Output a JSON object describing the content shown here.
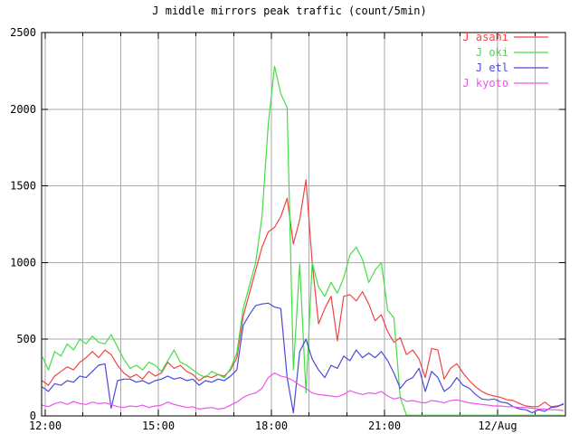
{
  "colors": {
    "background": "#ffffff",
    "grid": "#aaaaaa",
    "axis": "#000000",
    "text": "#000000"
  },
  "chart_data": {
    "type": "line",
    "title": "J middle mirrors peak traffic (count/5min)",
    "x_axis": {
      "tick_labels": [
        "12:00",
        "15:00",
        "18:00",
        "21:00",
        "12/Aug"
      ],
      "tick_minutes_from_1200": [
        0,
        180,
        360,
        540,
        720
      ],
      "minor_tick_every_minutes": 60,
      "range_minutes_from_1200": [
        -7,
        828
      ],
      "grid": true
    },
    "y_axis": {
      "tick_labels": [
        "0",
        "500",
        "1000",
        "1500",
        "2000",
        "2500"
      ],
      "tick_values": [
        0,
        500,
        1000,
        1500,
        2000,
        2500
      ],
      "range": [
        0,
        2500
      ],
      "grid": true
    },
    "x_minutes_from_1200": [
      -5,
      5,
      15,
      25,
      35,
      45,
      55,
      65,
      75,
      85,
      95,
      105,
      115,
      125,
      135,
      145,
      155,
      165,
      175,
      185,
      195,
      205,
      215,
      225,
      235,
      245,
      255,
      265,
      275,
      285,
      295,
      305,
      315,
      325,
      335,
      345,
      355,
      365,
      375,
      385,
      395,
      405,
      415,
      425,
      435,
      445,
      455,
      465,
      475,
      485,
      495,
      505,
      515,
      525,
      535,
      545,
      555,
      565,
      575,
      585,
      595,
      605,
      615,
      625,
      635,
      645,
      655,
      665,
      675,
      685,
      695,
      705,
      715,
      725,
      735,
      745,
      755,
      765,
      775,
      785,
      795,
      805,
      815,
      825
    ],
    "series": [
      {
        "name": "J asahi",
        "color": "#ee4444",
        "values": [
          230,
          200,
          260,
          290,
          320,
          300,
          350,
          380,
          420,
          380,
          430,
          400,
          330,
          280,
          250,
          270,
          240,
          290,
          260,
          280,
          350,
          310,
          330,
          290,
          270,
          230,
          260,
          250,
          270,
          260,
          300,
          380,
          650,
          800,
          950,
          1100,
          1200,
          1230,
          1300,
          1420,
          1120,
          1280,
          1540,
          1000,
          600,
          700,
          780,
          490,
          780,
          790,
          750,
          810,
          730,
          620,
          660,
          550,
          480,
          510,
          400,
          430,
          370,
          250,
          440,
          430,
          240,
          310,
          340,
          280,
          230,
          190,
          160,
          140,
          130,
          120,
          105,
          100,
          80,
          65,
          60,
          60,
          90,
          60,
          65,
          75
        ]
      },
      {
        "name": "J oki",
        "color": "#44dd44",
        "values": [
          390,
          300,
          420,
          390,
          470,
          430,
          500,
          470,
          520,
          480,
          470,
          530,
          450,
          370,
          310,
          330,
          300,
          350,
          330,
          290,
          360,
          430,
          350,
          330,
          300,
          270,
          250,
          290,
          270,
          250,
          310,
          410,
          700,
          850,
          1000,
          1300,
          1900,
          2280,
          2100,
          2010,
          300,
          990,
          150,
          1000,
          840,
          780,
          870,
          800,
          900,
          1050,
          1100,
          1020,
          870,
          950,
          1000,
          690,
          640,
          120,
          5,
          5,
          5,
          5,
          5,
          5,
          5,
          5,
          5,
          5,
          5,
          5,
          5,
          5,
          5,
          5,
          5,
          5,
          5,
          5,
          5,
          5,
          5,
          5,
          5,
          5
        ]
      },
      {
        "name": "J etl",
        "color": "#4a4ad8",
        "values": [
          190,
          160,
          210,
          200,
          230,
          220,
          260,
          250,
          290,
          330,
          340,
          50,
          230,
          240,
          240,
          220,
          230,
          210,
          230,
          240,
          260,
          240,
          250,
          230,
          240,
          200,
          230,
          220,
          240,
          230,
          260,
          300,
          590,
          660,
          720,
          730,
          735,
          710,
          700,
          250,
          20,
          420,
          500,
          370,
          300,
          250,
          330,
          310,
          390,
          360,
          430,
          380,
          410,
          380,
          420,
          360,
          280,
          180,
          230,
          250,
          310,
          160,
          290,
          250,
          160,
          190,
          250,
          200,
          180,
          140,
          110,
          105,
          110,
          90,
          85,
          60,
          45,
          40,
          20,
          40,
          30,
          55,
          60,
          80
        ]
      },
      {
        "name": "J kyoto",
        "color": "#ee55ee",
        "values": [
          70,
          60,
          80,
          90,
          75,
          95,
          80,
          75,
          90,
          80,
          85,
          75,
          60,
          55,
          65,
          60,
          70,
          55,
          65,
          70,
          90,
          75,
          65,
          55,
          60,
          45,
          50,
          55,
          45,
          50,
          70,
          90,
          120,
          140,
          150,
          180,
          250,
          280,
          260,
          250,
          230,
          200,
          180,
          150,
          140,
          135,
          130,
          125,
          140,
          165,
          150,
          140,
          150,
          145,
          160,
          130,
          110,
          120,
          95,
          100,
          90,
          85,
          100,
          95,
          85,
          100,
          105,
          95,
          85,
          80,
          75,
          70,
          65,
          65,
          60,
          60,
          55,
          55,
          50,
          45,
          45,
          40,
          40,
          35
        ]
      }
    ],
    "legend": {
      "position": "top-right",
      "entries": [
        "J asahi",
        "J oki",
        "J etl",
        "J kyoto"
      ]
    }
  }
}
